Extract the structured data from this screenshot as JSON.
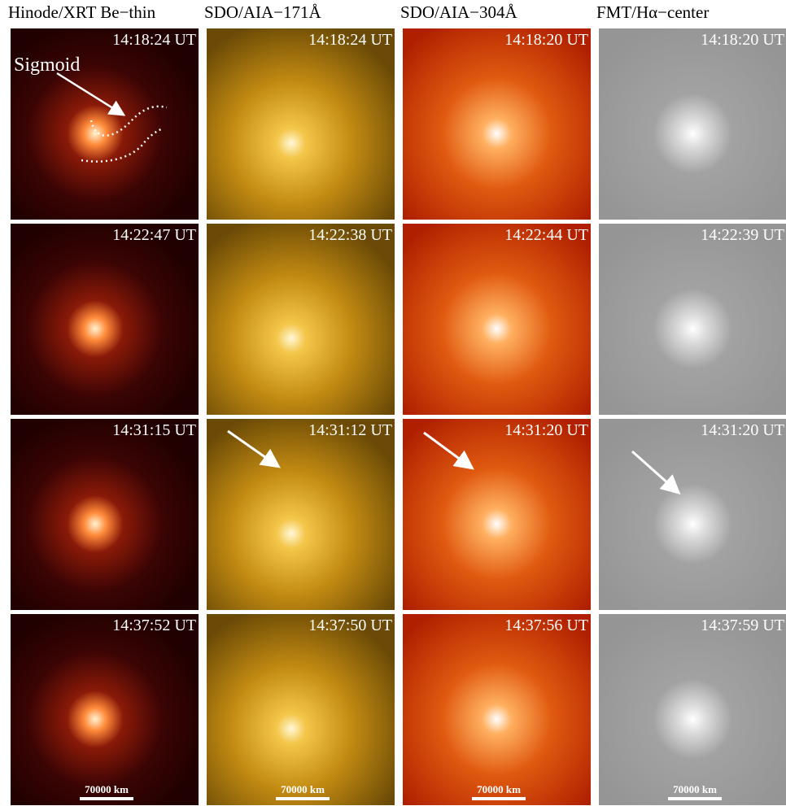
{
  "headers": [
    "Hinode/XRT Be−thin",
    "SDO/AIA−171Å",
    "SDO/AIA−304Å",
    "FMT/Hα−center"
  ],
  "panels": [
    [
      "14:18:24 UT",
      "14:18:24 UT",
      "14:18:20 UT",
      "14:18:20 UT"
    ],
    [
      "14:22:47 UT",
      "14:22:38 UT",
      "14:22:44 UT",
      "14:22:39 UT"
    ],
    [
      "14:31:15 UT",
      "14:31:12 UT",
      "14:31:20 UT",
      "14:31:20 UT"
    ],
    [
      "14:37:52 UT",
      "14:37:50 UT",
      "14:37:56 UT",
      "14:37:59 UT"
    ]
  ],
  "annotation": "Sigmoid",
  "scale_bars": [
    "70000 km",
    "70000 km",
    "70000 km",
    "70000 km"
  ]
}
